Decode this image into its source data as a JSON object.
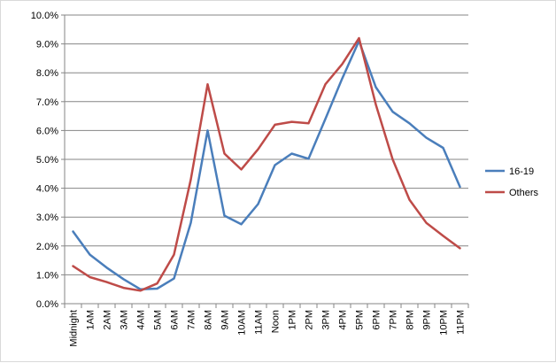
{
  "chart_data": {
    "type": "line",
    "title": "",
    "xlabel": "",
    "ylabel": "",
    "categories": [
      "Midnight",
      "1AM",
      "2AM",
      "3AM",
      "4AM",
      "5AM",
      "6AM",
      "7AM",
      "8AM",
      "9AM",
      "10AM",
      "11AM",
      "Noon",
      "1PM",
      "2PM",
      "3PM",
      "4PM",
      "5PM",
      "6PM",
      "7PM",
      "8PM",
      "9PM",
      "10PM",
      "11PM"
    ],
    "yticks": [
      "0.0%",
      "1.0%",
      "2.0%",
      "3.0%",
      "4.0%",
      "5.0%",
      "6.0%",
      "7.0%",
      "8.0%",
      "9.0%",
      "10.0%"
    ],
    "ylim": [
      0,
      10
    ],
    "grid": "horizontal",
    "legend_position": "right",
    "series": [
      {
        "name": "16-19",
        "color": "#4a7ebb",
        "values": [
          2.5,
          1.7,
          1.25,
          0.85,
          0.5,
          0.52,
          0.87,
          2.8,
          6.0,
          3.05,
          2.75,
          3.45,
          4.8,
          5.2,
          5.02,
          6.4,
          7.8,
          9.1,
          7.5,
          6.65,
          6.25,
          5.75,
          5.4,
          4.05
        ]
      },
      {
        "name": "Others",
        "color": "#be4b48",
        "values": [
          1.3,
          0.92,
          0.75,
          0.55,
          0.45,
          0.7,
          1.7,
          4.3,
          7.6,
          5.2,
          4.65,
          5.35,
          6.2,
          6.3,
          6.25,
          7.6,
          8.3,
          9.2,
          6.9,
          5.0,
          3.6,
          2.8,
          2.35,
          1.92
        ]
      }
    ]
  }
}
